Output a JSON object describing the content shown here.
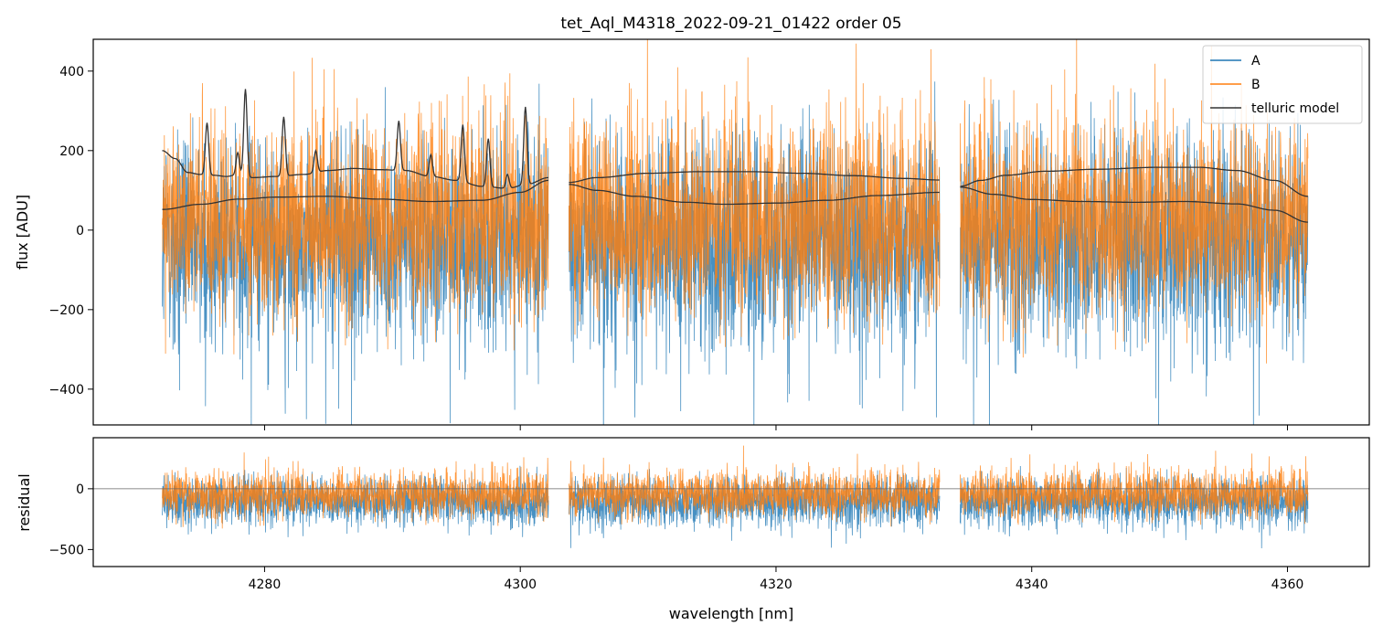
{
  "chart_data": [
    {
      "type": "line",
      "panel": "top",
      "title": "tet_Aql_M4318_2022-09-21_01422  order 05",
      "xlabel": "",
      "ylabel": "flux [ADU]",
      "xlim": [
        4266.6,
        4366.4
      ],
      "ylim": [
        -490,
        480
      ],
      "yticks": [
        400,
        200,
        0,
        -200,
        -400
      ],
      "ytick_labels": [
        "400",
        "200",
        "0",
        "−200",
        "−400"
      ],
      "xticks": [
        4280,
        4300,
        4320,
        4340,
        4360
      ],
      "segments": [
        [
          4272.0,
          4302.2
        ],
        [
          4303.8,
          4332.8
        ],
        [
          4334.4,
          4361.6
        ]
      ],
      "series": [
        {
          "name": "A",
          "color": "#1f77b4",
          "center": -20,
          "spread": 180,
          "dip": 320
        },
        {
          "name": "B",
          "color": "#ff7f0e",
          "center": 20,
          "spread": 170,
          "spike": 260
        }
      ],
      "telluric_model": {
        "name": "telluric model",
        "color": "#333333",
        "upper": [
          [
            [
              4272.0,
              200
            ],
            [
              4273.0,
              180
            ],
            [
              4274.0,
              145
            ],
            [
              4275.0,
              140
            ],
            [
              4276.0,
              138
            ],
            [
              4277.0,
              135
            ],
            [
              4278.0,
              140
            ],
            [
              4279.0,
              132
            ],
            [
              4281.0,
              135
            ],
            [
              4283.0,
              140
            ],
            [
              4285.0,
              150
            ],
            [
              4287.0,
              155
            ],
            [
              4289.0,
              152
            ],
            [
              4291.0,
              150
            ],
            [
              4293.0,
              135
            ],
            [
              4295.0,
              125
            ],
            [
              4297.0,
              110
            ],
            [
              4299.0,
              105
            ],
            [
              4300.5,
              115
            ],
            [
              4302.2,
              132
            ]
          ],
          [
            [
              4303.8,
              120
            ],
            [
              4306.0,
              132
            ],
            [
              4310.0,
              143
            ],
            [
              4314.0,
              147
            ],
            [
              4318.0,
              147
            ],
            [
              4322.0,
              143
            ],
            [
              4326.0,
              137
            ],
            [
              4330.0,
              130
            ],
            [
              4332.8,
              126
            ]
          ],
          [
            [
              4334.4,
              110
            ],
            [
              4336.0,
              125
            ],
            [
              4338.0,
              138
            ],
            [
              4341.0,
              148
            ],
            [
              4345.0,
              153
            ],
            [
              4350.0,
              158
            ],
            [
              4353.0,
              158
            ],
            [
              4356.0,
              150
            ],
            [
              4359.0,
              125
            ],
            [
              4361.6,
              85
            ]
          ]
        ],
        "lower": [
          [
            [
              4272.0,
              52
            ],
            [
              4275.0,
              65
            ],
            [
              4278.0,
              78
            ],
            [
              4281.0,
              83
            ],
            [
              4285.0,
              85
            ],
            [
              4289.0,
              78
            ],
            [
              4293.0,
              72
            ],
            [
              4297.0,
              75
            ],
            [
              4300.0,
              95
            ],
            [
              4302.2,
              125
            ]
          ],
          [
            [
              4303.8,
              115
            ],
            [
              4306.0,
              100
            ],
            [
              4309.0,
              85
            ],
            [
              4313.0,
              70
            ],
            [
              4316.0,
              65
            ],
            [
              4320.0,
              68
            ],
            [
              4324.0,
              75
            ],
            [
              4328.0,
              87
            ],
            [
              4332.8,
              95
            ]
          ],
          [
            [
              4334.4,
              108
            ],
            [
              4337.0,
              90
            ],
            [
              4340.0,
              77
            ],
            [
              4344.0,
              72
            ],
            [
              4348.0,
              70
            ],
            [
              4352.0,
              72
            ],
            [
              4356.0,
              66
            ],
            [
              4359.0,
              50
            ],
            [
              4361.6,
              20
            ]
          ]
        ],
        "peaks": [
          [
            4275.5,
            270
          ],
          [
            4277.9,
            195
          ],
          [
            4278.5,
            355
          ],
          [
            4281.5,
            285
          ],
          [
            4284.0,
            200
          ],
          [
            4290.5,
            275
          ],
          [
            4293.0,
            190
          ],
          [
            4295.5,
            265
          ],
          [
            4297.5,
            230
          ],
          [
            4299.0,
            140
          ],
          [
            4300.4,
            310
          ]
        ]
      },
      "legend": {
        "position": "top-right",
        "entries": [
          "A",
          "B",
          "telluric model"
        ]
      }
    },
    {
      "type": "line",
      "panel": "bottom",
      "xlabel": "wavelength [nm]",
      "ylabel": "residual",
      "xlim": [
        4266.6,
        4366.4
      ],
      "ylim": [
        -640,
        420
      ],
      "yticks": [
        0,
        -500
      ],
      "ytick_labels": [
        "0",
        "−500"
      ],
      "xticks": [
        4280,
        4300,
        4320,
        4340,
        4360
      ],
      "xtick_labels": [
        "4280",
        "4300",
        "4320",
        "4340",
        "4360"
      ],
      "baseline": 0,
      "series": [
        {
          "name": "A",
          "color": "#1f77b4",
          "center": -100,
          "spread": 140,
          "dip": 160
        },
        {
          "name": "B",
          "color": "#ff7f0e",
          "center": -50,
          "spread": 130,
          "spike": 220
        }
      ]
    }
  ]
}
